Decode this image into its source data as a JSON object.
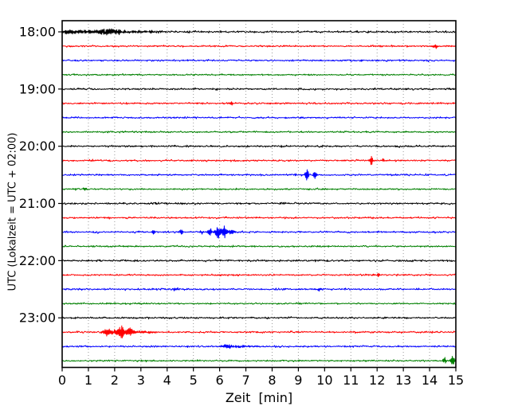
{
  "chart_data": {
    "type": "line",
    "subtype": "seismogram-helicorder-dayplot",
    "title": "",
    "xlabel": "Zeit  [min]",
    "ylabel": "UTC (Lokalzeit = UTC + 02:00)",
    "xlim": [
      0,
      15
    ],
    "minutes_per_line": 15,
    "grid": "vertical-dotted",
    "xticks": [
      "0",
      "1",
      "2",
      "3",
      "4",
      "5",
      "6",
      "7",
      "8",
      "9",
      "10",
      "11",
      "12",
      "13",
      "14",
      "15"
    ],
    "ytick_labels": [
      "18:00",
      "19:00",
      "20:00",
      "21:00",
      "22:00",
      "23:00"
    ],
    "ytick_rows": [
      0,
      4,
      8,
      12,
      16,
      20
    ],
    "colors_cycle": [
      "#000000",
      "#ff0000",
      "#0000ff",
      "#008000"
    ],
    "axis_color": "#000000",
    "grid_color": "#999999",
    "traces": [
      {
        "utc": "18:00",
        "color": "#000000",
        "base_noise": 1.8,
        "events": [
          [
            0.5,
            1.5,
            2.2
          ],
          [
            1.8,
            0.45,
            2.8
          ],
          [
            3.0,
            0.8,
            1.2
          ]
        ]
      },
      {
        "utc": "18:15",
        "color": "#ff0000",
        "base_noise": 1.5,
        "events": [
          [
            14.24,
            0.07,
            2.5
          ]
        ]
      },
      {
        "utc": "18:30",
        "color": "#0000ff",
        "base_noise": 1.5,
        "events": []
      },
      {
        "utc": "18:45",
        "color": "#008000",
        "base_noise": 1.4,
        "events": []
      },
      {
        "utc": "19:00",
        "color": "#000000",
        "base_noise": 1.6,
        "events": []
      },
      {
        "utc": "19:15",
        "color": "#ff0000",
        "base_noise": 1.5,
        "events": [
          [
            6.44,
            0.1,
            1.8
          ]
        ]
      },
      {
        "utc": "19:30",
        "color": "#0000ff",
        "base_noise": 1.5,
        "events": []
      },
      {
        "utc": "19:45",
        "color": "#008000",
        "base_noise": 1.4,
        "events": []
      },
      {
        "utc": "20:00",
        "color": "#000000",
        "base_noise": 1.6,
        "events": []
      },
      {
        "utc": "20:15",
        "color": "#ff0000",
        "base_noise": 1.5,
        "events": [
          [
            11.78,
            0.05,
            7
          ],
          [
            12.24,
            0.05,
            2.5
          ]
        ]
      },
      {
        "utc": "20:30",
        "color": "#0000ff",
        "base_noise": 1.5,
        "events": [
          [
            9.32,
            0.07,
            7
          ],
          [
            9.63,
            0.08,
            5
          ]
        ]
      },
      {
        "utc": "20:45",
        "color": "#008000",
        "base_noise": 1.4,
        "events": [
          [
            0.88,
            0.08,
            1.8
          ]
        ]
      },
      {
        "utc": "21:00",
        "color": "#000000",
        "base_noise": 1.6,
        "events": []
      },
      {
        "utc": "21:15",
        "color": "#ff0000",
        "base_noise": 1.5,
        "events": []
      },
      {
        "utc": "21:30",
        "color": "#0000ff",
        "base_noise": 1.5,
        "events": [
          [
            3.49,
            0.05,
            3
          ],
          [
            4.55,
            0.06,
            3.5
          ],
          [
            5.31,
            0.06,
            2.5
          ],
          [
            5.62,
            0.07,
            5
          ],
          [
            5.93,
            0.1,
            11
          ],
          [
            6.18,
            0.09,
            8
          ],
          [
            6.45,
            0.15,
            3
          ]
        ]
      },
      {
        "utc": "21:45",
        "color": "#008000",
        "base_noise": 1.4,
        "events": []
      },
      {
        "utc": "22:00",
        "color": "#000000",
        "base_noise": 1.6,
        "events": []
      },
      {
        "utc": "22:15",
        "color": "#ff0000",
        "base_noise": 1.5,
        "events": [
          [
            12.06,
            0.06,
            2.5
          ]
        ]
      },
      {
        "utc": "22:30",
        "color": "#0000ff",
        "base_noise": 1.5,
        "events": [
          [
            4.34,
            0.3,
            1.2
          ],
          [
            9.78,
            0.07,
            2
          ]
        ]
      },
      {
        "utc": "22:45",
        "color": "#008000",
        "base_noise": 1.4,
        "events": []
      },
      {
        "utc": "23:00",
        "color": "#000000",
        "base_noise": 1.6,
        "events": []
      },
      {
        "utc": "23:15",
        "color": "#ff0000",
        "base_noise": 1.5,
        "events": [
          [
            1.67,
            0.12,
            4
          ],
          [
            2.0,
            0.3,
            3
          ],
          [
            2.25,
            0.12,
            8
          ],
          [
            2.58,
            0.12,
            6
          ],
          [
            3.0,
            0.45,
            1.5
          ]
        ]
      },
      {
        "utc": "23:30",
        "color": "#0000ff",
        "base_noise": 1.5,
        "events": [
          [
            6.3,
            0.25,
            2.2
          ],
          [
            6.9,
            0.4,
            1.2
          ]
        ]
      },
      {
        "utc": "23:45",
        "color": "#008000",
        "base_noise": 1.4,
        "events": [
          [
            14.58,
            0.07,
            4
          ],
          [
            14.88,
            0.08,
            7
          ]
        ]
      }
    ]
  }
}
